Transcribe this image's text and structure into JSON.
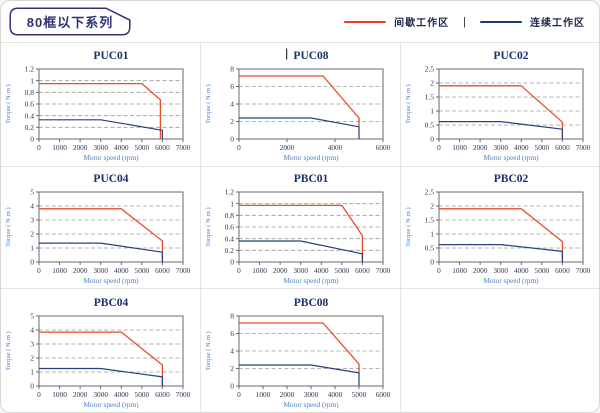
{
  "page": {
    "badge_title": "80框以下系列"
  },
  "legend": {
    "separator": "|",
    "items": [
      {
        "label": "间歇工作区",
        "color": "#f43b1c"
      },
      {
        "label": "连续工作区",
        "color": "#1f3a7a"
      }
    ]
  },
  "colors": {
    "red_line": "#e84c2b",
    "blue_line": "#27407c",
    "grid_line": "#9a9a9a",
    "frame": "#6a6a6a",
    "tick_text": "#2b3550",
    "axis_label": "#4a7ec0",
    "chart_title": "#1d2f6a",
    "cell_border": "#e4e4e4",
    "badge_border": "#2d3376"
  },
  "layout_rows": [
    [
      0,
      1,
      2
    ],
    [
      3,
      4,
      5
    ],
    [
      6,
      7,
      -1
    ]
  ],
  "chart_data": [
    {
      "type": "line",
      "title": "PUC01",
      "caret": false,
      "xlabel": "Motor speed (rpm)",
      "ylabel": "Torque ( N·m )",
      "xlim": [
        0,
        7000
      ],
      "ylim": [
        0,
        1.2
      ],
      "xticks": [
        0,
        1000,
        2000,
        3000,
        4000,
        5000,
        6000,
        7000
      ],
      "yticks": [
        0,
        0.2,
        0.4,
        0.6,
        0.8,
        1,
        1.2
      ],
      "series": [
        {
          "name": "间歇工作区",
          "color": "red",
          "points": [
            [
              0,
              0.95
            ],
            [
              5000,
              0.95
            ],
            [
              5900,
              0.67
            ],
            [
              5900,
              0
            ]
          ]
        },
        {
          "name": "连续工作区",
          "color": "blue",
          "points": [
            [
              0,
              0.33
            ],
            [
              3000,
              0.33
            ],
            [
              6000,
              0.15
            ],
            [
              6000,
              0
            ]
          ]
        }
      ]
    },
    {
      "type": "line",
      "title": "PUC08",
      "caret": true,
      "xlabel": "Motor speed (rpm)",
      "ylabel": "Torque ( N·m )",
      "xlim": [
        0,
        6000
      ],
      "ylim": [
        0,
        8
      ],
      "xticks": [
        0,
        2000,
        4000,
        6000
      ],
      "yticks": [
        0,
        2,
        4,
        6,
        8
      ],
      "series": [
        {
          "name": "间歇工作区",
          "color": "red",
          "points": [
            [
              0,
              7.2
            ],
            [
              3500,
              7.2
            ],
            [
              5000,
              2.4
            ],
            [
              5000,
              1.4
            ]
          ]
        },
        {
          "name": "连续工作区",
          "color": "blue",
          "points": [
            [
              0,
              2.4
            ],
            [
              3000,
              2.4
            ],
            [
              5000,
              1.4
            ],
            [
              5000,
              0
            ]
          ]
        }
      ]
    },
    {
      "type": "line",
      "title": "PUC02",
      "caret": false,
      "xlabel": "Motor speed (rpm)",
      "ylabel": "Torque ( N·m )",
      "xlim": [
        0,
        7000
      ],
      "ylim": [
        0,
        2.5
      ],
      "xticks": [
        0,
        1000,
        2000,
        3000,
        4000,
        5000,
        6000,
        7000
      ],
      "yticks": [
        0,
        0.5,
        1,
        1.5,
        2,
        2.5
      ],
      "series": [
        {
          "name": "间歇工作区",
          "color": "red",
          "points": [
            [
              0,
              1.9
            ],
            [
              4000,
              1.9
            ],
            [
              6000,
              0.6
            ],
            [
              6000,
              0
            ]
          ]
        },
        {
          "name": "连续工作区",
          "color": "blue",
          "points": [
            [
              0,
              0.62
            ],
            [
              3000,
              0.62
            ],
            [
              6000,
              0.35
            ],
            [
              6000,
              0
            ]
          ]
        }
      ]
    },
    {
      "type": "line",
      "title": "PUC04",
      "caret": false,
      "xlabel": "Motor speed (rpm)",
      "ylabel": "Torque ( N·m )",
      "xlim": [
        0,
        7000
      ],
      "ylim": [
        0,
        5
      ],
      "xticks": [
        0,
        1000,
        2000,
        3000,
        4000,
        5000,
        6000,
        7000
      ],
      "yticks": [
        0,
        1,
        2,
        3,
        4,
        5
      ],
      "series": [
        {
          "name": "间歇工作区",
          "color": "red",
          "points": [
            [
              0,
              3.8
            ],
            [
              4000,
              3.8
            ],
            [
              6000,
              1.5
            ],
            [
              6000,
              0
            ]
          ]
        },
        {
          "name": "连续工作区",
          "color": "blue",
          "points": [
            [
              0,
              1.35
            ],
            [
              3000,
              1.35
            ],
            [
              6000,
              0.7
            ],
            [
              6000,
              0
            ]
          ]
        }
      ]
    },
    {
      "type": "line",
      "title": "PBC01",
      "caret": false,
      "xlabel": "Motor speed (rpm)",
      "ylabel": "Torque ( N·m )",
      "xlim": [
        0,
        7000
      ],
      "ylim": [
        0,
        1.2
      ],
      "xticks": [
        0,
        1000,
        2000,
        3000,
        4000,
        5000,
        6000,
        7000
      ],
      "yticks": [
        0,
        0.2,
        0.4,
        0.6,
        0.8,
        1,
        1.2
      ],
      "series": [
        {
          "name": "间歇工作区",
          "color": "red",
          "points": [
            [
              0,
              0.97
            ],
            [
              5000,
              0.97
            ],
            [
              6000,
              0.45
            ],
            [
              6000,
              0
            ]
          ]
        },
        {
          "name": "连续工作区",
          "color": "blue",
          "points": [
            [
              0,
              0.36
            ],
            [
              3000,
              0.36
            ],
            [
              6000,
              0.14
            ],
            [
              6000,
              0
            ]
          ]
        }
      ]
    },
    {
      "type": "line",
      "title": "PBC02",
      "caret": false,
      "xlabel": "Motor speed (rpm)",
      "ylabel": "Torque ( N·m )",
      "xlim": [
        0,
        7000
      ],
      "ylim": [
        0,
        2.5
      ],
      "xticks": [
        0,
        1000,
        2000,
        3000,
        4000,
        5000,
        6000,
        7000
      ],
      "yticks": [
        0,
        0.5,
        1,
        1.5,
        2,
        2.5
      ],
      "series": [
        {
          "name": "间歇工作区",
          "color": "red",
          "points": [
            [
              0,
              1.9
            ],
            [
              4000,
              1.9
            ],
            [
              6000,
              0.73
            ],
            [
              6000,
              0
            ]
          ]
        },
        {
          "name": "连续工作区",
          "color": "blue",
          "points": [
            [
              0,
              0.62
            ],
            [
              3000,
              0.62
            ],
            [
              6000,
              0.38
            ],
            [
              6000,
              0
            ]
          ]
        }
      ]
    },
    {
      "type": "line",
      "title": "PBC04",
      "caret": false,
      "xlabel": "Motor speed (rpm)",
      "ylabel": "Torque ( N·m )",
      "xlim": [
        0,
        7000
      ],
      "ylim": [
        0,
        5
      ],
      "xticks": [
        0,
        1000,
        2000,
        3000,
        4000,
        5000,
        6000,
        7000
      ],
      "yticks": [
        0,
        1,
        2,
        3,
        4,
        5
      ],
      "series": [
        {
          "name": "间歇工作区",
          "color": "red",
          "points": [
            [
              0,
              3.85
            ],
            [
              4000,
              3.85
            ],
            [
              6000,
              1.5
            ],
            [
              6000,
              0
            ]
          ]
        },
        {
          "name": "连续工作区",
          "color": "blue",
          "points": [
            [
              0,
              1.25
            ],
            [
              3000,
              1.25
            ],
            [
              6000,
              0.65
            ],
            [
              6000,
              0
            ]
          ]
        }
      ]
    },
    {
      "type": "line",
      "title": "PBC08",
      "caret": false,
      "xlabel": "Motor speed (rpm)",
      "ylabel": "Torque ( N·m )",
      "xlim": [
        0,
        6000
      ],
      "ylim": [
        0,
        8
      ],
      "xticks": [
        0,
        1000,
        2000,
        3000,
        4000,
        5000,
        6000
      ],
      "yticks": [
        0,
        2,
        4,
        6,
        8
      ],
      "series": [
        {
          "name": "间歇工作区",
          "color": "red",
          "points": [
            [
              0,
              7.2
            ],
            [
              3500,
              7.2
            ],
            [
              5000,
              2.5
            ],
            [
              5000,
              1.5
            ]
          ]
        },
        {
          "name": "连续工作区",
          "color": "blue",
          "points": [
            [
              0,
              2.4
            ],
            [
              3000,
              2.4
            ],
            [
              5000,
              1.5
            ],
            [
              5000,
              0
            ]
          ]
        }
      ]
    }
  ]
}
